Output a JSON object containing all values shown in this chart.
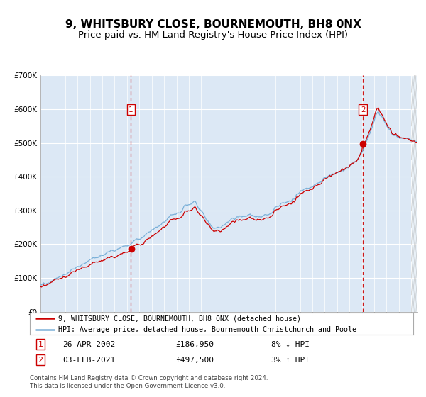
{
  "title": "9, WHITSBURY CLOSE, BOURNEMOUTH, BH8 0NX",
  "subtitle": "Price paid vs. HM Land Registry's House Price Index (HPI)",
  "legend_line1": "9, WHITSBURY CLOSE, BOURNEMOUTH, BH8 0NX (detached house)",
  "legend_line2": "HPI: Average price, detached house, Bournemouth Christchurch and Poole",
  "annotation1_date": "26-APR-2002",
  "annotation1_price": "£186,950",
  "annotation1_hpi": "8% ↓ HPI",
  "annotation2_date": "03-FEB-2021",
  "annotation2_price": "£497,500",
  "annotation2_hpi": "3% ↑ HPI",
  "footnote": "Contains HM Land Registry data © Crown copyright and database right 2024.\nThis data is licensed under the Open Government Licence v3.0.",
  "hpi_color": "#7ab0d8",
  "price_color": "#cc0000",
  "marker_color": "#cc0000",
  "vline_color": "#cc0000",
  "plot_bg": "#dce8f5",
  "grid_color": "#b0c4d8",
  "ylim_min": 0,
  "ylim_max": 700000,
  "year_start": 1995,
  "year_end": 2025,
  "sale1_year": 2002.32,
  "sale1_price": 186950,
  "sale2_year": 2021.09,
  "sale2_price": 497500,
  "title_fontsize": 11,
  "subtitle_fontsize": 9.5,
  "tick_fontsize": 7.5
}
